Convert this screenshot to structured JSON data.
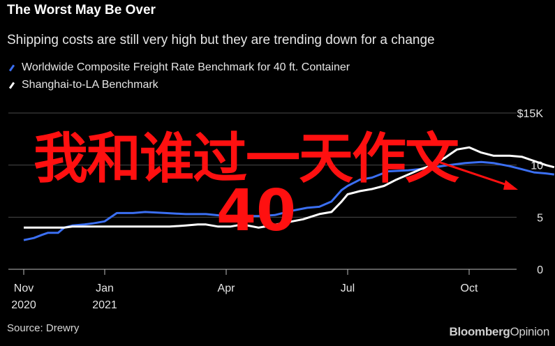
{
  "header": {
    "title": "The Worst May Be Over",
    "subtitle": "Shipping costs are still very high but they are trending down for a change"
  },
  "footer": {
    "source": "Source: Drewry",
    "brand_main": "Bloomberg",
    "brand_sub": "Opinion"
  },
  "overlay": {
    "title": "我和谁过一天作文",
    "number": "40",
    "arrow_color": "#ff1010"
  },
  "colors": {
    "background": "#000000",
    "series_composite": "#3b6ff2",
    "series_shanghai": "#ffffff",
    "grid": "#4a4a4a"
  },
  "chart_data": {
    "type": "line",
    "title": "The Worst May Be Over",
    "y_unit_label": "$15K",
    "ylim": [
      0,
      15
    ],
    "y_ticks": [
      {
        "value": 0,
        "label": "0"
      },
      {
        "value": 5,
        "label": "5"
      },
      {
        "value": 10,
        "label": "10"
      },
      {
        "value": 15,
        "label": "$15K"
      }
    ],
    "x_ticks": [
      {
        "month": 0,
        "line1": "Nov",
        "line2": "2020"
      },
      {
        "month": 2,
        "line1": "Jan",
        "line2": "2021"
      },
      {
        "month": 5,
        "line1": "Apr",
        "line2": ""
      },
      {
        "month": 8,
        "line1": "Jul",
        "line2": ""
      },
      {
        "month": 11,
        "line1": "Oct",
        "line2": ""
      }
    ],
    "xlim": [
      0,
      13.2
    ],
    "grid": true,
    "legend_position": "top-left",
    "series": [
      {
        "name": "Worldwide Composite Freight Rate Benchmark for 40 ft. Container",
        "color": "#3b6ff2",
        "points": [
          [
            0.0,
            2.8
          ],
          [
            0.25,
            3.0
          ],
          [
            0.45,
            3.3
          ],
          [
            0.6,
            3.5
          ],
          [
            0.85,
            3.5
          ],
          [
            1.0,
            4.0
          ],
          [
            1.2,
            4.2
          ],
          [
            1.5,
            4.3
          ],
          [
            1.7,
            4.4
          ],
          [
            2.0,
            4.6
          ],
          [
            2.3,
            5.4
          ],
          [
            2.7,
            5.4
          ],
          [
            3.0,
            5.5
          ],
          [
            3.5,
            5.4
          ],
          [
            4.0,
            5.3
          ],
          [
            4.5,
            5.3
          ],
          [
            5.0,
            5.1
          ],
          [
            5.4,
            5.1
          ],
          [
            5.8,
            5.1
          ],
          [
            6.2,
            5.2
          ],
          [
            6.6,
            5.6
          ],
          [
            7.0,
            5.9
          ],
          [
            7.3,
            6.0
          ],
          [
            7.6,
            6.5
          ],
          [
            7.85,
            7.6
          ],
          [
            8.0,
            8.0
          ],
          [
            8.3,
            8.6
          ],
          [
            8.6,
            8.8
          ],
          [
            9.0,
            9.4
          ],
          [
            9.5,
            9.5
          ],
          [
            10.0,
            9.7
          ],
          [
            10.5,
            10.0
          ],
          [
            10.9,
            10.2
          ],
          [
            11.3,
            10.3
          ],
          [
            11.6,
            10.2
          ],
          [
            12.0,
            9.9
          ],
          [
            12.3,
            9.6
          ],
          [
            12.6,
            9.3
          ],
          [
            12.9,
            9.2
          ],
          [
            13.1,
            9.1
          ]
        ]
      },
      {
        "name": "Shanghai-to-LA Benchmark",
        "color": "#ffffff",
        "points": [
          [
            0.0,
            4.0
          ],
          [
            0.4,
            4.0
          ],
          [
            0.8,
            4.0
          ],
          [
            1.0,
            4.0
          ],
          [
            1.2,
            4.1
          ],
          [
            1.5,
            4.1
          ],
          [
            1.8,
            4.1
          ],
          [
            2.0,
            4.1
          ],
          [
            2.4,
            4.1
          ],
          [
            3.0,
            4.1
          ],
          [
            3.6,
            4.1
          ],
          [
            4.0,
            4.2
          ],
          [
            4.3,
            4.3
          ],
          [
            4.5,
            4.3
          ],
          [
            4.8,
            4.1
          ],
          [
            5.1,
            4.1
          ],
          [
            5.4,
            4.3
          ],
          [
            5.8,
            4.0
          ],
          [
            6.1,
            4.2
          ],
          [
            6.5,
            4.5
          ],
          [
            6.9,
            4.8
          ],
          [
            7.3,
            5.3
          ],
          [
            7.6,
            5.5
          ],
          [
            7.85,
            6.5
          ],
          [
            8.0,
            7.2
          ],
          [
            8.3,
            7.5
          ],
          [
            8.6,
            7.7
          ],
          [
            8.9,
            8.0
          ],
          [
            9.2,
            8.6
          ],
          [
            9.5,
            9.1
          ],
          [
            9.8,
            9.6
          ],
          [
            10.1,
            10.0
          ],
          [
            10.4,
            10.7
          ],
          [
            10.7,
            11.5
          ],
          [
            11.0,
            11.7
          ],
          [
            11.3,
            11.2
          ],
          [
            11.6,
            10.9
          ],
          [
            12.0,
            10.9
          ],
          [
            12.3,
            10.8
          ],
          [
            12.6,
            10.4
          ],
          [
            12.9,
            10.0
          ],
          [
            13.1,
            9.8
          ]
        ]
      }
    ]
  }
}
